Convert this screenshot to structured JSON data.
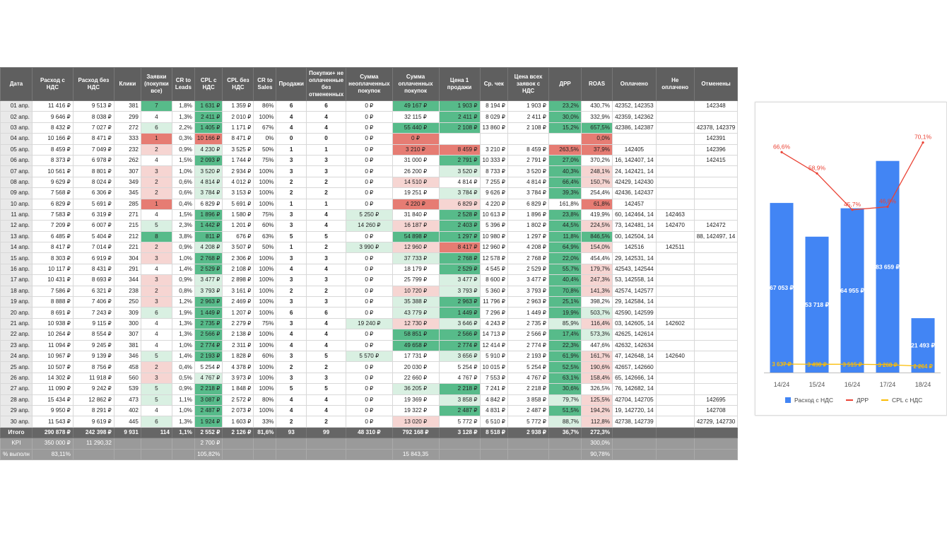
{
  "columns": [
    "Дата",
    "Расход с НДС",
    "Расход без НДС",
    "Клики",
    "Заявки (покупки все)",
    "CR to Leads",
    "CPL с НДС",
    "CPL без НДС",
    "CR to Sales",
    "Продажи",
    "Покупки+ не оплаченные без отмененных",
    "Сумма неоплаченных покупок",
    "Сумма оплаченных покупок",
    "Цена 1 продажи",
    "Ср. чек",
    "Цена всех заявок с НДС",
    "ДРР",
    "ROAS",
    "Оплачено",
    "Не оплачено",
    "Отменены"
  ],
  "rows": [
    [
      "01 апр.",
      "11 416 ₽",
      "9 513 ₽",
      "381",
      "7",
      "1,8%",
      "1 631 ₽",
      "1 359 ₽",
      "86%",
      "6",
      "6",
      "0 ₽",
      "49 167 ₽",
      "1 903 ₽",
      "8 194 ₽",
      "1 903 ₽",
      "23,2%",
      "430,7%",
      "42352, 142353",
      "",
      "142348"
    ],
    [
      "02 апр.",
      "9 646 ₽",
      "8 038 ₽",
      "299",
      "4",
      "1,3%",
      "2 411 ₽",
      "2 010 ₽",
      "100%",
      "4",
      "4",
      "0 ₽",
      "32 115 ₽",
      "2 411 ₽",
      "8 029 ₽",
      "2 411 ₽",
      "30,0%",
      "332,9%",
      "42359, 142362",
      "",
      ""
    ],
    [
      "03 апр.",
      "8 432 ₽",
      "7 027 ₽",
      "272",
      "6",
      "2,2%",
      "1 405 ₽",
      "1 171 ₽",
      "67%",
      "4",
      "4",
      "0 ₽",
      "55 440 ₽",
      "2 108 ₽",
      "13 860 ₽",
      "2 108 ₽",
      "15,2%",
      "657,5%",
      "42386, 142387",
      "",
      "42378, 142379"
    ],
    [
      "04 апр.",
      "10 166 ₽",
      "8 471 ₽",
      "333",
      "1",
      "0,3%",
      "10 166 ₽",
      "8 471 ₽",
      "0%",
      "0",
      "0",
      "0 ₽",
      "0 ₽",
      "",
      "",
      "",
      "",
      "0,0%",
      "",
      "",
      "142391"
    ],
    [
      "05 апр.",
      "8 459 ₽",
      "7 049 ₽",
      "232",
      "2",
      "0,9%",
      "4 230 ₽",
      "3 525 ₽",
      "50%",
      "1",
      "1",
      "0 ₽",
      "3 210 ₽",
      "8 459 ₽",
      "3 210 ₽",
      "8 459 ₽",
      "263,5%",
      "37,9%",
      "142405",
      "",
      "142396"
    ],
    [
      "06 апр.",
      "8 373 ₽",
      "6 978 ₽",
      "262",
      "4",
      "1,5%",
      "2 093 ₽",
      "1 744 ₽",
      "75%",
      "3",
      "3",
      "0 ₽",
      "31 000 ₽",
      "2 791 ₽",
      "10 333 ₽",
      "2 791 ₽",
      "27,0%",
      "370,2%",
      "16, 142407, 14",
      "",
      "142415"
    ],
    [
      "07 апр.",
      "10 561 ₽",
      "8 801 ₽",
      "307",
      "3",
      "1,0%",
      "3 520 ₽",
      "2 934 ₽",
      "100%",
      "3",
      "3",
      "0 ₽",
      "26 200 ₽",
      "3 520 ₽",
      "8 733 ₽",
      "3 520 ₽",
      "40,3%",
      "248,1%",
      "24, 142421, 14",
      "",
      ""
    ],
    [
      "08 апр.",
      "9 629 ₽",
      "8 024 ₽",
      "349",
      "2",
      "0,6%",
      "4 814 ₽",
      "4 012 ₽",
      "100%",
      "2",
      "2",
      "0 ₽",
      "14 510 ₽",
      "4 814 ₽",
      "7 255 ₽",
      "4 814 ₽",
      "66,4%",
      "150,7%",
      "42429, 142430",
      "",
      ""
    ],
    [
      "09 апр.",
      "7 568 ₽",
      "6 306 ₽",
      "345",
      "2",
      "0,6%",
      "3 784 ₽",
      "3 153 ₽",
      "100%",
      "2",
      "2",
      "0 ₽",
      "19 251 ₽",
      "3 784 ₽",
      "9 626 ₽",
      "3 784 ₽",
      "39,3%",
      "254,4%",
      "42436, 142437",
      "",
      ""
    ],
    [
      "10 апр.",
      "6 829 ₽",
      "5 691 ₽",
      "285",
      "1",
      "0,4%",
      "6 829 ₽",
      "5 691 ₽",
      "100%",
      "1",
      "1",
      "0 ₽",
      "4 220 ₽",
      "6 829 ₽",
      "4 220 ₽",
      "6 829 ₽",
      "161,8%",
      "61,8%",
      "142457",
      "",
      ""
    ],
    [
      "11 апр.",
      "7 583 ₽",
      "6 319 ₽",
      "271",
      "4",
      "1,5%",
      "1 896 ₽",
      "1 580 ₽",
      "75%",
      "3",
      "4",
      "5 250 ₽",
      "31 840 ₽",
      "2 528 ₽",
      "10 613 ₽",
      "1 896 ₽",
      "23,8%",
      "419,9%",
      "60, 142464, 14",
      "142463",
      ""
    ],
    [
      "12 апр.",
      "7 209 ₽",
      "6 007 ₽",
      "215",
      "5",
      "2,3%",
      "1 442 ₽",
      "1 201 ₽",
      "60%",
      "3",
      "4",
      "14 260 ₽",
      "16 187 ₽",
      "2 403 ₽",
      "5 396 ₽",
      "1 802 ₽",
      "44,5%",
      "224,5%",
      "73, 142481, 14",
      "142470",
      "142472"
    ],
    [
      "13 апр.",
      "6 485 ₽",
      "5 404 ₽",
      "212",
      "8",
      "3,8%",
      "811 ₽",
      "676 ₽",
      "63%",
      "5",
      "5",
      "0 ₽",
      "54 898 ₽",
      "1 297 ₽",
      "10 980 ₽",
      "1 297 ₽",
      "11,8%",
      "846,5%",
      "00, 142504, 14",
      "",
      "88, 142497, 14"
    ],
    [
      "14 апр.",
      "8 417 ₽",
      "7 014 ₽",
      "221",
      "2",
      "0,9%",
      "4 208 ₽",
      "3 507 ₽",
      "50%",
      "1",
      "2",
      "3 990 ₽",
      "12 960 ₽",
      "8 417 ₽",
      "12 960 ₽",
      "4 208 ₽",
      "64,9%",
      "154,0%",
      "142516",
      "142511",
      ""
    ],
    [
      "15 апр.",
      "8 303 ₽",
      "6 919 ₽",
      "304",
      "3",
      "1,0%",
      "2 768 ₽",
      "2 306 ₽",
      "100%",
      "3",
      "3",
      "0 ₽",
      "37 733 ₽",
      "2 768 ₽",
      "12 578 ₽",
      "2 768 ₽",
      "22,0%",
      "454,4%",
      "29, 142531, 14",
      "",
      ""
    ],
    [
      "16 апр.",
      "10 117 ₽",
      "8 431 ₽",
      "291",
      "4",
      "1,4%",
      "2 529 ₽",
      "2 108 ₽",
      "100%",
      "4",
      "4",
      "0 ₽",
      "18 179 ₽",
      "2 529 ₽",
      "4 545 ₽",
      "2 529 ₽",
      "55,7%",
      "179,7%",
      "42543, 142544",
      "",
      ""
    ],
    [
      "17 апр.",
      "10 431 ₽",
      "8 693 ₽",
      "344",
      "3",
      "0,9%",
      "3 477 ₽",
      "2 898 ₽",
      "100%",
      "3",
      "3",
      "0 ₽",
      "25 799 ₽",
      "3 477 ₽",
      "8 600 ₽",
      "3 477 ₽",
      "40,4%",
      "247,3%",
      "53, 142558, 14",
      "",
      ""
    ],
    [
      "18 апр.",
      "7 586 ₽",
      "6 321 ₽",
      "238",
      "2",
      "0,8%",
      "3 793 ₽",
      "3 161 ₽",
      "100%",
      "2",
      "2",
      "0 ₽",
      "10 720 ₽",
      "3 793 ₽",
      "5 360 ₽",
      "3 793 ₽",
      "70,8%",
      "141,3%",
      "42574, 142577",
      "",
      ""
    ],
    [
      "19 апр.",
      "8 888 ₽",
      "7 406 ₽",
      "250",
      "3",
      "1,2%",
      "2 963 ₽",
      "2 469 ₽",
      "100%",
      "3",
      "3",
      "0 ₽",
      "35 388 ₽",
      "2 963 ₽",
      "11 796 ₽",
      "2 963 ₽",
      "25,1%",
      "398,2%",
      "29, 142584, 14",
      "",
      ""
    ],
    [
      "20 апр.",
      "8 691 ₽",
      "7 243 ₽",
      "309",
      "6",
      "1,9%",
      "1 449 ₽",
      "1 207 ₽",
      "100%",
      "6",
      "6",
      "0 ₽",
      "43 779 ₽",
      "1 449 ₽",
      "7 296 ₽",
      "1 449 ₽",
      "19,9%",
      "503,7%",
      "42590, 142599",
      "",
      ""
    ],
    [
      "21 апр.",
      "10 938 ₽",
      "9 115 ₽",
      "300",
      "4",
      "1,3%",
      "2 735 ₽",
      "2 279 ₽",
      "75%",
      "3",
      "4",
      "19 240 ₽",
      "12 730 ₽",
      "3 646 ₽",
      "4 243 ₽",
      "2 735 ₽",
      "85,9%",
      "116,4%",
      "03, 142605, 14",
      "142602",
      ""
    ],
    [
      "22 апр.",
      "10 264 ₽",
      "8 554 ₽",
      "307",
      "4",
      "1,3%",
      "2 566 ₽",
      "2 138 ₽",
      "100%",
      "4",
      "4",
      "0 ₽",
      "58 851 ₽",
      "2 566 ₽",
      "14 713 ₽",
      "2 566 ₽",
      "17,4%",
      "573,3%",
      "42625, 142614",
      "",
      ""
    ],
    [
      "23 апр.",
      "11 094 ₽",
      "9 245 ₽",
      "381",
      "4",
      "1,0%",
      "2 774 ₽",
      "2 311 ₽",
      "100%",
      "4",
      "4",
      "0 ₽",
      "49 658 ₽",
      "2 774 ₽",
      "12 414 ₽",
      "2 774 ₽",
      "22,3%",
      "447,6%",
      "42632, 142634",
      "",
      ""
    ],
    [
      "24 апр.",
      "10 967 ₽",
      "9 139 ₽",
      "346",
      "5",
      "1,4%",
      "2 193 ₽",
      "1 828 ₽",
      "60%",
      "3",
      "5",
      "5 570 ₽",
      "17 731 ₽",
      "3 656 ₽",
      "5 910 ₽",
      "2 193 ₽",
      "61,9%",
      "161,7%",
      "47, 142648, 14",
      "142640",
      ""
    ],
    [
      "25 апр.",
      "10 507 ₽",
      "8 756 ₽",
      "458",
      "2",
      "0,4%",
      "5 254 ₽",
      "4 378 ₽",
      "100%",
      "2",
      "2",
      "0 ₽",
      "20 030 ₽",
      "5 254 ₽",
      "10 015 ₽",
      "5 254 ₽",
      "52,5%",
      "190,6%",
      "42657, 142660",
      "",
      ""
    ],
    [
      "26 апр.",
      "14 302 ₽",
      "11 918 ₽",
      "560",
      "3",
      "0,5%",
      "4 767 ₽",
      "3 973 ₽",
      "100%",
      "3",
      "3",
      "0 ₽",
      "22 660 ₽",
      "4 767 ₽",
      "7 553 ₽",
      "4 767 ₽",
      "63,1%",
      "158,4%",
      "65, 142666, 14",
      "",
      ""
    ],
    [
      "27 апр.",
      "11 090 ₽",
      "9 242 ₽",
      "539",
      "5",
      "0,9%",
      "2 218 ₽",
      "1 848 ₽",
      "100%",
      "5",
      "5",
      "0 ₽",
      "36 205 ₽",
      "2 218 ₽",
      "7 241 ₽",
      "2 218 ₽",
      "30,6%",
      "326,5%",
      "76, 142682, 14",
      "",
      ""
    ],
    [
      "28 апр.",
      "15 434 ₽",
      "12 862 ₽",
      "473",
      "5",
      "1,1%",
      "3 087 ₽",
      "2 572 ₽",
      "80%",
      "4",
      "4",
      "0 ₽",
      "19 369 ₽",
      "3 858 ₽",
      "4 842 ₽",
      "3 858 ₽",
      "79,7%",
      "125,5%",
      "42704, 142705",
      "",
      "142695"
    ],
    [
      "29 апр.",
      "9 950 ₽",
      "8 291 ₽",
      "402",
      "4",
      "1,0%",
      "2 487 ₽",
      "2 073 ₽",
      "100%",
      "4",
      "4",
      "0 ₽",
      "19 322 ₽",
      "2 487 ₽",
      "4 831 ₽",
      "2 487 ₽",
      "51,5%",
      "194,2%",
      "19, 142720, 14",
      "",
      "142708"
    ],
    [
      "30 апр.",
      "11 543 ₽",
      "9 619 ₽",
      "445",
      "6",
      "1,3%",
      "1 924 ₽",
      "1 603 ₽",
      "33%",
      "2",
      "2",
      "0 ₽",
      "13 020 ₽",
      "5 772 ₽",
      "6 510 ₽",
      "5 772 ₽",
      "88,7%",
      "112,8%",
      "42738, 142739",
      "",
      "42729, 142730"
    ]
  ],
  "total_row": [
    "Итого",
    "290 878 ₽",
    "242 398 ₽",
    "9 931",
    "114",
    "1,1%",
    "2 552 ₽",
    "2 126 ₽",
    "81,6%",
    "93",
    "99",
    "48 310 ₽",
    "792 168 ₽",
    "3 128 ₽",
    "8 518 ₽",
    "2 938 ₽",
    "36,7%",
    "272,3%",
    "",
    "",
    ""
  ],
  "kpi_row": [
    "KPI",
    "350 000 ₽",
    "11 290,32",
    "",
    "",
    "",
    "2 700 ₽",
    "",
    "",
    "",
    "",
    "",
    "",
    "",
    "",
    "",
    "",
    "300,0%",
    "",
    "",
    ""
  ],
  "perf_row": [
    "% выполн",
    "83,11%",
    "",
    "",
    "",
    "",
    "105,82%",
    "",
    "",
    "",
    "",
    "",
    "15 843,35",
    "",
    "",
    "",
    "",
    "90,78%",
    "",
    "",
    ""
  ],
  "colors": {
    "header_bg": "#5f5f5f",
    "green_strong": "#57bb8a",
    "green_light": "#d9f0e2",
    "red_strong": "#e67c73",
    "red_light": "#f6d5d2",
    "bar": "#4285f4",
    "line_drr": "#ea4335",
    "line_cpl": "#fbbc04"
  },
  "chart_data": {
    "type": "bar",
    "categories": [
      "14/24",
      "15/24",
      "16/24",
      "17/24",
      "18/24"
    ],
    "series": [
      {
        "name": "Расход с НДС",
        "type": "bar",
        "values": [
          67053,
          53718,
          64955,
          83659,
          21493
        ],
        "labels": [
          "67 053 ₽",
          "53 718 ₽",
          "64 955 ₽",
          "83 659 ₽",
          "21 493 ₽"
        ]
      },
      {
        "name": "ДРР",
        "type": "line",
        "values": [
          66.6,
          58.9,
          45.7,
          46.8,
          70.1
        ],
        "labels": [
          "66,6%",
          "58,9%",
          "45,7%",
          "46,8%",
          "70,1%"
        ]
      },
      {
        "name": "CPL с НДС",
        "type": "line",
        "values": [
          3637,
          3498,
          3515,
          3268,
          2204
        ],
        "labels": [
          "3 637 ₽",
          "3 498 ₽",
          "3 515 ₽",
          "3 268 ₽",
          "2 204 ₽"
        ]
      }
    ],
    "legend_position": "bottom",
    "grid": false
  }
}
